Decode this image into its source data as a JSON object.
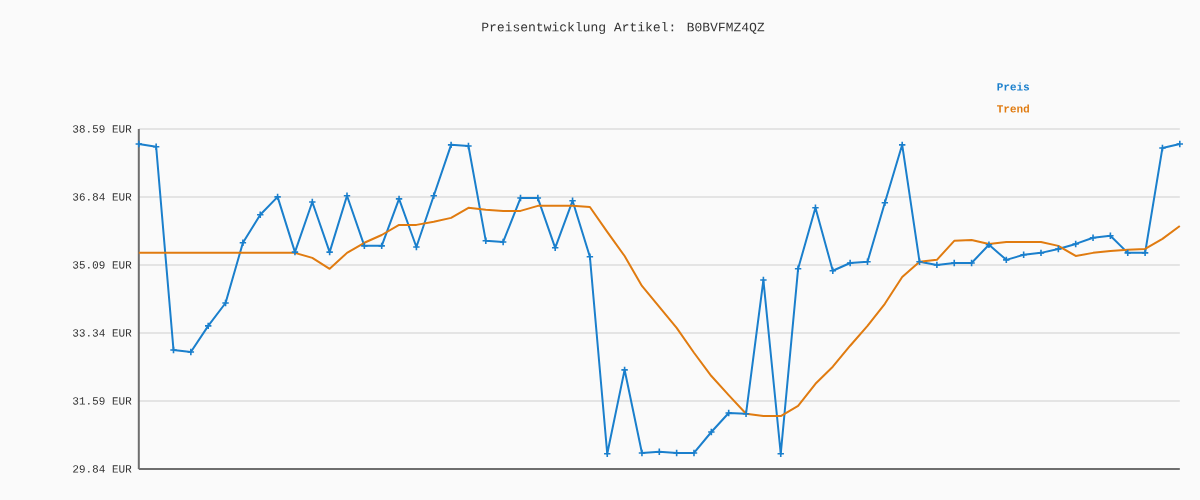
{
  "chart_data": {
    "type": "line",
    "title": "Preisentwicklung Artikel: B0BVFMZ4QZ",
    "categories": [
      null,
      null,
      null,
      null,
      null,
      null,
      null,
      null,
      null,
      null,
      null,
      null,
      null,
      null,
      null,
      null,
      null,
      null,
      null,
      null,
      null,
      null,
      null,
      null,
      null,
      null,
      null,
      null,
      null,
      null,
      null,
      null,
      null,
      null,
      null,
      null,
      null,
      null,
      null,
      null,
      null,
      null,
      null,
      null,
      null,
      null,
      null,
      null,
      null,
      null,
      null,
      null,
      null,
      null,
      null,
      null,
      null,
      null,
      null,
      null,
      null
    ],
    "series": [
      {
        "name": "Preis",
        "color": "#1a7fcc",
        "marker": "cross",
        "values": [
          38.2,
          38.13,
          32.9,
          32.85,
          33.52,
          34.11,
          35.66,
          36.38,
          36.84,
          35.42,
          36.71,
          35.42,
          36.87,
          35.58,
          35.58,
          36.79,
          35.55,
          36.87,
          38.18,
          38.15,
          35.71,
          35.68,
          36.81,
          36.81,
          35.53,
          36.74,
          35.3,
          30.23,
          32.39,
          30.25,
          30.28,
          30.25,
          30.25,
          30.79,
          31.28,
          31.26,
          34.7,
          30.23,
          34.99,
          36.56,
          34.94,
          35.14,
          35.17,
          36.69,
          38.18,
          35.17,
          35.09,
          35.14,
          35.14,
          35.61,
          35.22,
          35.35,
          35.4,
          35.5,
          35.63,
          35.79,
          35.84,
          35.4,
          35.4,
          38.1,
          38.2
        ]
      },
      {
        "name": "Trend",
        "color": "#e07b10",
        "values": [
          35.4,
          35.4,
          35.4,
          35.4,
          35.4,
          35.4,
          35.4,
          35.4,
          35.4,
          35.4,
          35.27,
          34.99,
          35.4,
          35.66,
          35.86,
          36.12,
          36.12,
          36.2,
          36.3,
          36.56,
          36.51,
          36.48,
          36.48,
          36.61,
          36.61,
          36.61,
          36.58,
          35.94,
          35.32,
          34.55,
          34.01,
          33.47,
          32.83,
          32.23,
          31.74,
          31.26,
          31.2,
          31.2,
          31.46,
          32.03,
          32.47,
          33.01,
          33.52,
          34.09,
          34.78,
          35.17,
          35.22,
          35.71,
          35.73,
          35.63,
          35.68,
          35.68,
          35.68,
          35.58,
          35.32,
          35.4,
          35.45,
          35.48,
          35.5,
          35.76,
          36.09
        ]
      }
    ],
    "ylim": [
      29.84,
      38.59
    ],
    "yticks": [
      {
        "value": 29.84,
        "label": "29.84 EUR"
      },
      {
        "value": 31.59,
        "label": "31.59 EUR"
      },
      {
        "value": 33.34,
        "label": "33.34 EUR"
      },
      {
        "value": 35.09,
        "label": "35.09 EUR"
      },
      {
        "value": 36.84,
        "label": "36.84 EUR"
      },
      {
        "value": 38.59,
        "label": "38.59 EUR"
      }
    ],
    "grid": "y",
    "legend": "top right",
    "line_style": "solid"
  }
}
